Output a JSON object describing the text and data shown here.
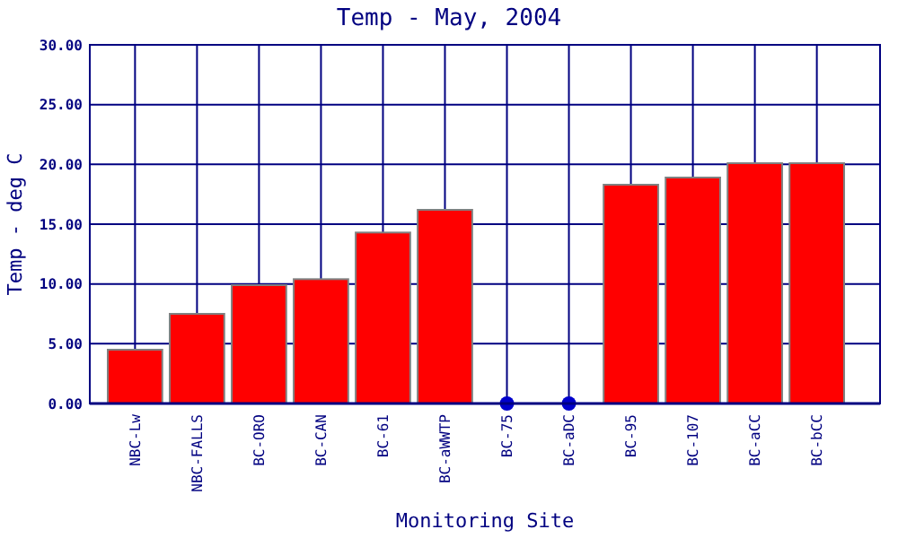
{
  "chart_data": {
    "type": "bar",
    "title": "Temp - May, 2004",
    "xlabel": "Monitoring Site",
    "ylabel": "Temp - deg C",
    "categories": [
      "NBC-Lw",
      "NBC-FALLS",
      "BC-ORO",
      "BC-CAN",
      "BC-61",
      "BC-aWWTP",
      "BC-75",
      "BC-aDC",
      "BC-95",
      "BC-107",
      "BC-aCC",
      "BC-bCC"
    ],
    "series": [
      {
        "color": "#ff0000",
        "values": [
          4.5,
          7.5,
          9.9,
          10.4,
          14.3,
          16.2,
          null,
          null,
          18.3,
          18.9,
          20.1,
          20.1
        ]
      },
      {
        "type": "scatter",
        "color": "#0000cc",
        "x": [
          "BC-75",
          "BC-aDC"
        ],
        "values": [
          0,
          0
        ]
      }
    ],
    "ylim": [
      0,
      30
    ],
    "yticks": [
      {
        "value": 0,
        "label": "0.00"
      },
      {
        "value": 5,
        "label": "5.00"
      },
      {
        "value": 10,
        "label": "10.00"
      },
      {
        "value": 15,
        "label": "15.00"
      },
      {
        "value": 20,
        "label": "20.00"
      },
      {
        "value": 25,
        "label": "25.00"
      },
      {
        "value": 30,
        "label": "30.00"
      }
    ],
    "grid": true,
    "marker": "circle"
  }
}
